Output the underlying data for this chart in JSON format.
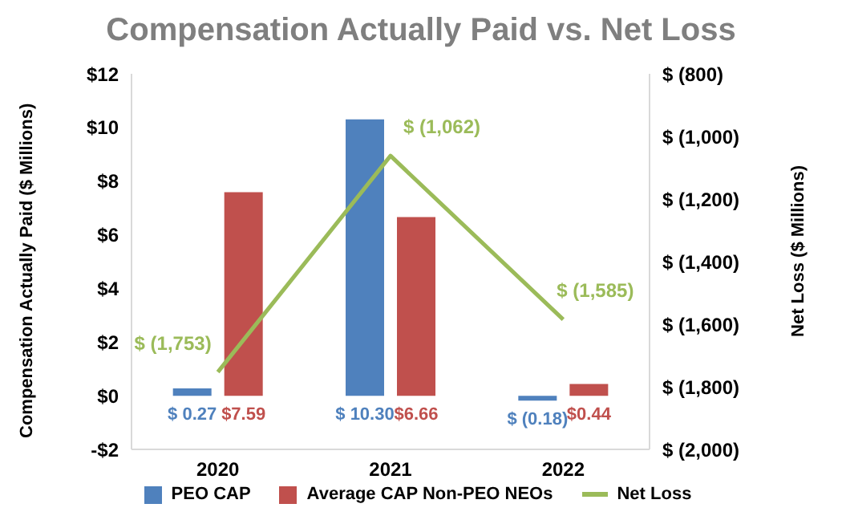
{
  "chart_data": {
    "type": "bar",
    "title": "Compensation Actually Paid vs. Net Loss",
    "ylabel": "Compensation Actually Paid ($ Millions)",
    "y2label": "Net  Loss  ($ Millions)",
    "categories": [
      "2020",
      "2021",
      "2022"
    ],
    "series": [
      {
        "name": "PEO CAP",
        "color": "#4f81bd",
        "values": [
          0.27,
          10.3,
          -0.18
        ],
        "value_labels": [
          "$ 0.27",
          "$ 10.30",
          "$ (0.18)"
        ]
      },
      {
        "name": "Average CAP Non-PEO NEOs",
        "color": "#c0504d",
        "values": [
          7.59,
          6.66,
          0.44
        ],
        "value_labels": [
          "$7.59",
          "$6.66",
          "$0.44"
        ]
      },
      {
        "name": "Net Loss",
        "type": "line",
        "axis": "y2",
        "color": "#9bbb59",
        "values": [
          -1753,
          -1062,
          -1585
        ],
        "value_labels": [
          "$ (1,753)",
          "$ (1,062)",
          "$ (1,585)"
        ]
      }
    ],
    "ylim": [
      -2,
      12
    ],
    "yticks": [
      {
        "value": -2,
        "label": "-$2"
      },
      {
        "value": 0,
        "label": "$0"
      },
      {
        "value": 2,
        "label": "$2"
      },
      {
        "value": 4,
        "label": "$4"
      },
      {
        "value": 6,
        "label": "$6"
      },
      {
        "value": 8,
        "label": "$8"
      },
      {
        "value": 10,
        "label": "$10"
      },
      {
        "value": 12,
        "label": "$12"
      }
    ],
    "y2lim": [
      -2000,
      -800
    ],
    "y2ticks": [
      {
        "value": -2000,
        "label": "$ (2,000)"
      },
      {
        "value": -1800,
        "label": "$ (1,800)"
      },
      {
        "value": -1600,
        "label": "$ (1,600)"
      },
      {
        "value": -1400,
        "label": "$ (1,400)"
      },
      {
        "value": -1200,
        "label": "$ (1,200)"
      },
      {
        "value": -1000,
        "label": "$ (1,000)"
      },
      {
        "value": -800,
        "label": "$ (800)"
      }
    ],
    "grid": false,
    "legend": "bottom",
    "marker": "none",
    "line_style": "solid"
  }
}
